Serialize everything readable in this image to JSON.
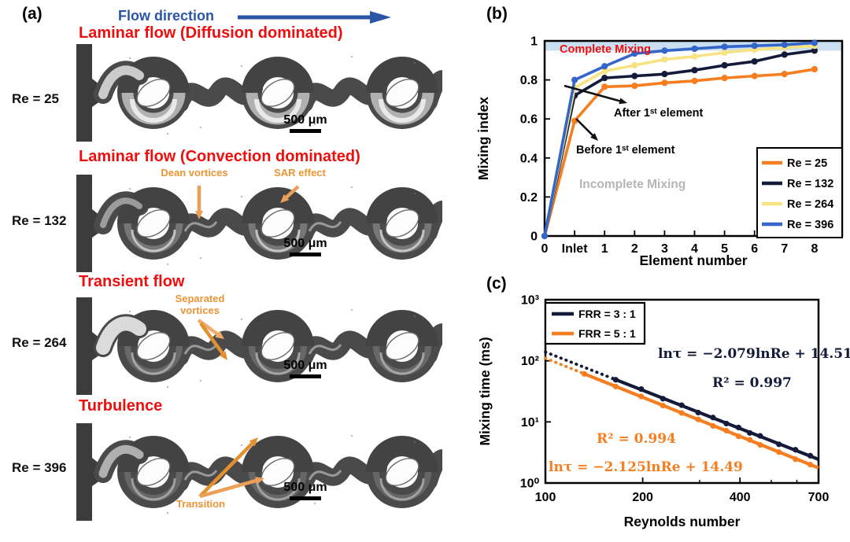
{
  "panel_a": {
    "label": "(a)",
    "flow_direction_label": "Flow direction",
    "rows": [
      {
        "regime_title": "Laminar flow (Diffusion dominated)",
        "re_label": "Re = 25",
        "scale_bar_label": "500 μm",
        "annotations": []
      },
      {
        "regime_title": "Laminar flow (Convection dominated)",
        "re_label": "Re = 132",
        "scale_bar_label": "500 μm",
        "annotations": [
          {
            "text": "Dean vortices"
          },
          {
            "text": "SAR effect"
          }
        ]
      },
      {
        "regime_title": "Transient flow",
        "re_label": "Re = 264",
        "scale_bar_label": "500 μm",
        "annotations": [
          {
            "text": "Separated vortices"
          }
        ]
      },
      {
        "regime_title": "Turbulence",
        "re_label": "Re = 396",
        "scale_bar_label": "500 μm",
        "annotations": [
          {
            "text": "Transition"
          }
        ]
      }
    ]
  },
  "panel_b": {
    "label": "(b)",
    "annotations": {
      "complete_mixing": "Complete Mixing",
      "incomplete_mixing": "Incomplete Mixing",
      "after_first": "After 1ˢᵗ element",
      "before_first": "Before 1ˢᵗ element"
    }
  },
  "panel_c": {
    "label": "(c)",
    "equations": {
      "navy_fit": "lnτ = −2.079lnRe + 14.51",
      "navy_r2": "R² = 0.997",
      "orange_r2": "R² = 0.994",
      "orange_fit": "lnτ = −2.125lnRe + 14.49"
    }
  },
  "colors": {
    "red_title": "#EE0E0E",
    "flow_blue": "#2B55A5",
    "annotation_orange": "#ED9434",
    "series_orange": "#F57E20",
    "series_navy": "#141A39",
    "series_yellow": "#F8E383",
    "series_blue": "#3465C8",
    "complete_band": "#CBDFF2",
    "incomplete_gray": "#B5B5B5"
  },
  "chart_data": [
    {
      "id": "mixing-index",
      "type": "line",
      "title": "",
      "xlabel": "Element number",
      "ylabel": "Mixing index",
      "categories": [
        "0",
        "Inlet",
        "1",
        "2",
        "3",
        "4",
        "5",
        "6",
        "7",
        "8"
      ],
      "ylim": [
        0,
        1
      ],
      "yticks": [
        0,
        0.2,
        0.4,
        0.6,
        0.8,
        1
      ],
      "grid": false,
      "legend_position": "lower right",
      "complete_mixing_band": [
        0.95,
        1.0
      ],
      "series": [
        {
          "name": "Re =  25",
          "color": "#F57E20",
          "values": [
            0,
            0.59,
            0.765,
            0.77,
            0.785,
            0.795,
            0.81,
            0.82,
            0.83,
            0.855
          ]
        },
        {
          "name": "Re = 132",
          "color": "#141A39",
          "values": [
            0,
            0.72,
            0.81,
            0.82,
            0.83,
            0.85,
            0.875,
            0.895,
            0.93,
            0.95
          ]
        },
        {
          "name": "Re = 264",
          "color": "#F8E383",
          "values": [
            0,
            0.76,
            0.845,
            0.875,
            0.905,
            0.92,
            0.94,
            0.955,
            0.965,
            0.975
          ]
        },
        {
          "name": "Re = 396",
          "color": "#3465C8",
          "values": [
            0,
            0.8,
            0.87,
            0.935,
            0.95,
            0.96,
            0.97,
            0.975,
            0.98,
            0.99
          ]
        }
      ]
    },
    {
      "id": "mixing-time",
      "type": "scatter",
      "xlabel": "Reynolds number",
      "ylabel": "Mixing time (ms)",
      "xscale": "log",
      "yscale": "log",
      "xlim": [
        100,
        700
      ],
      "ylim": [
        1,
        1000
      ],
      "xticks": [
        100,
        200,
        400,
        700
      ],
      "xticks_minor": [
        300,
        500,
        600
      ],
      "ytick_values": [
        1,
        10,
        100,
        1000
      ],
      "ytick_labels": [
        "10⁰",
        "10¹",
        "10²",
        "10³"
      ],
      "legend_position": "upper left",
      "series": [
        {
          "name": "FRR = 3 : 1",
          "color": "#141A39",
          "fit": {
            "slope": -2.079,
            "intercept": 14.51,
            "dotted_from": 100,
            "solid_from": 160
          },
          "points_x": [
            165,
            198,
            231,
            264,
            297,
            330,
            363,
            396,
            429,
            462,
            528,
            594,
            660
          ],
          "points_y": [
            49,
            34.5,
            24,
            18.8,
            14.2,
            11.8,
            9.4,
            8.1,
            6.6,
            5.9,
            4.3,
            3.5,
            2.8
          ]
        },
        {
          "name": "FRR = 5 : 1",
          "color": "#F57E20",
          "fit": {
            "slope": -2.125,
            "intercept": 14.49,
            "dotted_from": 100,
            "solid_from": 130
          },
          "points_x": [
            132,
            165,
            198,
            231,
            264,
            297,
            330,
            363,
            396,
            429,
            462,
            528,
            594,
            660
          ],
          "points_y": [
            61,
            38,
            26,
            18.5,
            14,
            11,
            8.6,
            7.2,
            5.8,
            5.1,
            4.2,
            3.2,
            2.45,
            2.0
          ]
        }
      ]
    }
  ]
}
